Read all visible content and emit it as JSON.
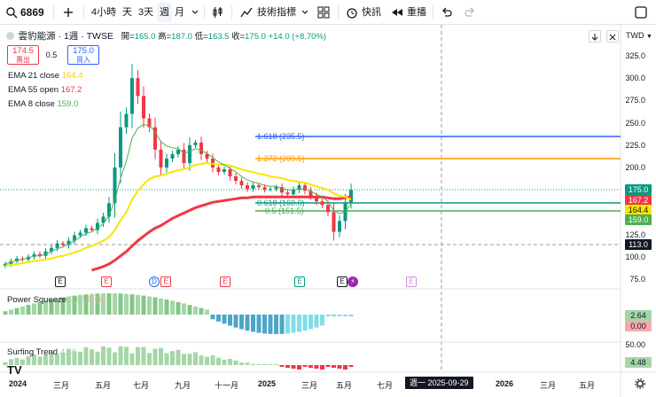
{
  "toolbar": {
    "symbol": "6869",
    "intervals": [
      "4小時",
      "天",
      "3天",
      "週",
      "月"
    ],
    "active_interval": "週",
    "indicators_label": "技術指標",
    "alert_label": "快訊",
    "replay_label": "重播"
  },
  "legend": {
    "name": "雲豹能源 · 1週 · TWSE",
    "ohlc": {
      "open_label": "開=",
      "open": "165.0",
      "high_label": "高=",
      "high": "187.0",
      "low_label": "低=",
      "low": "163.5",
      "close_label": "收=",
      "close": "175.0",
      "change": "+14.0 (+8.70%)"
    },
    "sell_price": "174.5",
    "sell_label": "賣出",
    "spread": "0.5",
    "buy_price": "175.0",
    "buy_label": "買入",
    "ema21_label": "EMA 21 close",
    "ema21_value": "164.4",
    "ema55_label": "EMA 55 open",
    "ema55_value": "167.2",
    "ema8_label": "EMA 8 close",
    "ema8_value": "159.0"
  },
  "currency": "TWD",
  "price_axis": [
    "325.0",
    "300.0",
    "275.0",
    "250.0",
    "225.0",
    "200.0",
    "175.0",
    "150.0",
    "125.0",
    "100.0",
    "75.0"
  ],
  "price_tags": [
    {
      "value": "175.0",
      "color": "#089981"
    },
    {
      "value": "167.2",
      "color": "#f23645"
    },
    {
      "value": "164.4",
      "color": "#f7e600",
      "text_color": "#131722"
    },
    {
      "value": "159.0",
      "color": "#4caf50"
    },
    {
      "value": "113.0",
      "color": "#131722"
    }
  ],
  "fib_levels": [
    {
      "label": "1.618 (235.5)",
      "color": "#2962ff"
    },
    {
      "label": "1.272 (209.5)",
      "color": "#ff9800"
    },
    {
      "label": "0.618 (160.0)",
      "color": "#089981"
    },
    {
      "label": "0.5 (151.5)",
      "color": "#4caf50"
    }
  ],
  "events": [
    "E",
    "E",
    "D",
    "E",
    "E",
    "E",
    "E"
  ],
  "indicators": {
    "power_squeeze": {
      "label": "Power Squeeze",
      "v1": "2.64",
      "v2": "0.00",
      "tag1": "2.64",
      "tag2": "0.00"
    },
    "surfing_trend": {
      "label": "Surfing Trend",
      "v1": "4.48",
      "axis": "50.00",
      "tag": "4.48"
    }
  },
  "time_axis": [
    "2024",
    "三月",
    "五月",
    "七月",
    "九月",
    "十一月",
    "2025",
    "三月",
    "五月",
    "七月",
    "2026",
    "三月",
    "五月"
  ],
  "crosshair_date": "週一  2025-09-29",
  "chart_data": {
    "type": "candlestick",
    "interval": "weekly",
    "ohlc_last": {
      "open": 165.0,
      "high": 187.0,
      "low": 163.5,
      "close": 175.0
    },
    "ylim": [
      75,
      335
    ],
    "close_series": [
      92,
      95,
      98,
      97,
      100,
      103,
      101,
      106,
      110,
      115,
      113,
      118,
      124,
      127,
      132,
      130,
      138,
      145,
      160,
      200,
      245,
      260,
      300,
      280,
      255,
      245,
      220,
      200,
      210,
      215,
      220,
      205,
      225,
      228,
      215,
      210,
      200,
      195,
      198,
      190,
      185,
      180,
      176,
      180,
      178,
      175,
      176,
      178,
      172,
      170,
      175,
      180,
      174,
      168,
      162,
      158,
      150,
      128,
      140,
      161,
      175
    ],
    "ema8": [
      92,
      94,
      96,
      97,
      99,
      101,
      101,
      103,
      106,
      109,
      111,
      114,
      118,
      122,
      126,
      128,
      132,
      137,
      146,
      163,
      188,
      207,
      233,
      244,
      248,
      247,
      240,
      229,
      224,
      222,
      221,
      216,
      218,
      221,
      219,
      216,
      211,
      206,
      203,
      199,
      195,
      190,
      186,
      184,
      182,
      180,
      179,
      179,
      177,
      175,
      175,
      176,
      176,
      173,
      170,
      167,
      162,
      152,
      148,
      151,
      159
    ],
    "ema21": [
      90,
      91,
      92,
      93,
      94,
      95,
      96,
      97,
      98,
      100,
      101,
      103,
      105,
      107,
      110,
      112,
      115,
      118,
      122,
      130,
      141,
      150,
      164,
      174,
      181,
      187,
      190,
      191,
      193,
      195,
      197,
      198,
      200,
      203,
      204,
      205,
      204,
      203,
      203,
      202,
      200,
      198,
      196,
      195,
      193,
      192,
      190,
      189,
      188,
      186,
      185,
      184,
      183,
      181,
      179,
      177,
      175,
      171,
      168,
      167,
      164.4
    ],
    "ema55": [
      null,
      null,
      null,
      null,
      null,
      null,
      null,
      null,
      null,
      null,
      null,
      null,
      null,
      null,
      null,
      85,
      87,
      89,
      92,
      96,
      101,
      106,
      112,
      118,
      123,
      128,
      132,
      135,
      139,
      143,
      146,
      149,
      152,
      155,
      157,
      159,
      161,
      162,
      163,
      164,
      165,
      166,
      166,
      167,
      167,
      167,
      167,
      167,
      167,
      167,
      167,
      167,
      167,
      167,
      167,
      167,
      166,
      165,
      165,
      166,
      167.2
    ]
  }
}
